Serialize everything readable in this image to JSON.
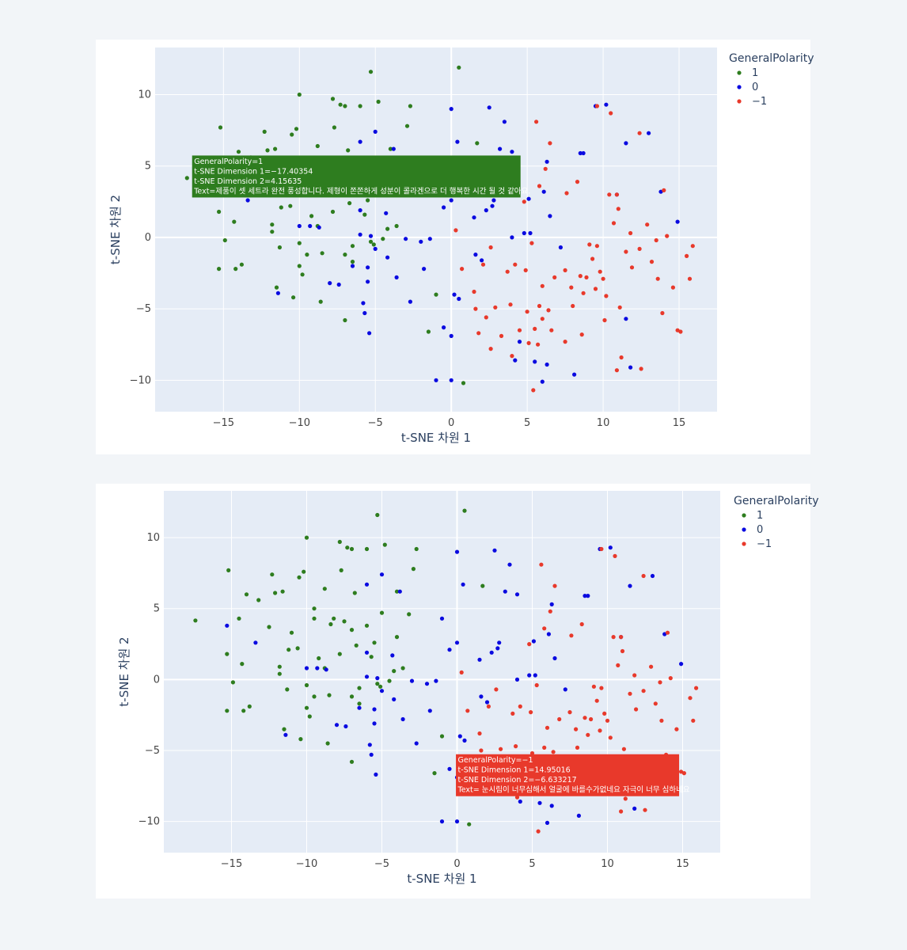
{
  "colors": {
    "positive": "#2e7d1f",
    "neutral": "#0a0ae0",
    "negative": "#e8392b",
    "plot_bg": "#e5ecf6",
    "grid": "#ffffff"
  },
  "chart_data": [
    {
      "type": "scatter",
      "xlabel": "t-SNE 차원 1",
      "ylabel": "t-SNE 차원 2",
      "xlim": [
        -19.5,
        17.5
      ],
      "ylim": [
        -12.2,
        13.3
      ],
      "xticks": [
        -15,
        -10,
        -5,
        0,
        5,
        10,
        15
      ],
      "yticks": [
        10,
        5,
        0,
        -5,
        -10
      ],
      "xtick_labels": [
        "−15",
        "−10",
        "−5",
        "0",
        "5",
        "10",
        "15"
      ],
      "ytick_labels": [
        "10",
        "5",
        "0",
        "−5",
        "−10"
      ],
      "legend": {
        "title": "GeneralPolarity",
        "position": "top-right",
        "entries": [
          {
            "label": "1",
            "color_key": "positive"
          },
          {
            "label": "0",
            "color_key": "neutral"
          },
          {
            "label": "−1",
            "color_key": "negative"
          }
        ]
      },
      "grid": true,
      "tooltip": {
        "lines": [
          "GeneralPolarity=1",
          "t-SNE Dimension 1=−17.40354",
          "t-SNE Dimension 2=4.15635",
          "Text=제품이 셋 세트라 완전   풍성합니다. 제형이 쫀쫀하게 성분이 콜라겐으로  더 행복한 시간 될 것 같아요."
        ],
        "color_key": "positive",
        "x": -17.40354,
        "y": 4.15635
      },
      "series": [
        {
          "name": "1",
          "color_key": "positive",
          "points": [
            [
              -17.4,
              4.16
            ],
            [
              -15.2,
              7.7
            ],
            [
              -15.3,
              1.8
            ],
            [
              -15.3,
              -2.2
            ],
            [
              -14.9,
              -0.2
            ],
            [
              -14.5,
              4.3
            ],
            [
              -14.3,
              1.1
            ],
            [
              -14.2,
              -2.2
            ],
            [
              -14.0,
              6.0
            ],
            [
              -13.8,
              -1.9
            ],
            [
              -13.2,
              5.6
            ],
            [
              -12.5,
              3.7
            ],
            [
              -12.3,
              7.4
            ],
            [
              -12.1,
              6.1
            ],
            [
              -11.8,
              0.4
            ],
            [
              -11.8,
              0.9
            ],
            [
              -11.6,
              6.2
            ],
            [
              -11.5,
              -3.5
            ],
            [
              -11.3,
              -0.7
            ],
            [
              -11.2,
              2.1
            ],
            [
              -11.0,
              3.3
            ],
            [
              -10.6,
              2.2
            ],
            [
              -10.5,
              7.2
            ],
            [
              -10.4,
              -4.2
            ],
            [
              -10.2,
              7.6
            ],
            [
              -10.0,
              -2.0
            ],
            [
              -10.0,
              -0.4
            ],
            [
              -10.0,
              10.0
            ],
            [
              -9.8,
              -2.6
            ],
            [
              -9.5,
              4.3
            ],
            [
              -9.5,
              5.0
            ],
            [
              -9.5,
              -1.2
            ],
            [
              -9.2,
              1.5
            ],
            [
              -8.8,
              0.8
            ],
            [
              -8.8,
              6.4
            ],
            [
              -8.6,
              -4.5
            ],
            [
              -8.5,
              -1.1
            ],
            [
              -8.4,
              3.9
            ],
            [
              -8.2,
              4.3
            ],
            [
              -7.8,
              9.7
            ],
            [
              -7.8,
              1.8
            ],
            [
              -7.7,
              7.7
            ],
            [
              -7.5,
              4.1
            ],
            [
              -7.3,
              9.3
            ],
            [
              -7.0,
              -5.8
            ],
            [
              -7.0,
              3.5
            ],
            [
              -7.0,
              -1.2
            ],
            [
              -7.0,
              9.2
            ],
            [
              -6.8,
              6.1
            ],
            [
              -6.7,
              2.4
            ],
            [
              -6.5,
              -1.7
            ],
            [
              -6.5,
              -0.6
            ],
            [
              -6.0,
              3.8
            ],
            [
              -6.0,
              9.2
            ],
            [
              -5.7,
              1.6
            ],
            [
              -5.5,
              2.6
            ],
            [
              -5.3,
              -0.3
            ],
            [
              -5.3,
              11.6
            ],
            [
              -5.1,
              -0.5
            ],
            [
              -5.0,
              4.7
            ],
            [
              -4.8,
              9.5
            ],
            [
              -4.5,
              -0.1
            ],
            [
              -4.2,
              0.6
            ],
            [
              -4.0,
              6.2
            ],
            [
              -4.0,
              3.0
            ],
            [
              -3.6,
              0.8
            ],
            [
              -3.2,
              4.6
            ],
            [
              -2.7,
              9.2
            ],
            [
              -2.9,
              7.8
            ],
            [
              -1.5,
              -6.6
            ],
            [
              -1.0,
              -4.0
            ],
            [
              0.5,
              11.9
            ],
            [
              0.8,
              -10.2
            ],
            [
              1.7,
              6.6
            ]
          ]
        },
        {
          "name": "0",
          "color_key": "neutral",
          "points": [
            [
              -15.3,
              3.8
            ],
            [
              -13.4,
              2.6
            ],
            [
              -11.4,
              -3.9
            ],
            [
              -10.0,
              0.8
            ],
            [
              -9.3,
              0.8
            ],
            [
              -8.7,
              0.7
            ],
            [
              -8.0,
              -3.2
            ],
            [
              -7.4,
              -3.3
            ],
            [
              -6.5,
              -2.0
            ],
            [
              -6.0,
              1.9
            ],
            [
              -6.0,
              6.7
            ],
            [
              -6.0,
              0.2
            ],
            [
              -5.8,
              -4.6
            ],
            [
              -5.7,
              -5.3
            ],
            [
              -5.5,
              -3.1
            ],
            [
              -5.5,
              -2.1
            ],
            [
              -5.4,
              -6.7
            ],
            [
              -5.3,
              0.1
            ],
            [
              -5.0,
              -0.8
            ],
            [
              -5.0,
              7.4
            ],
            [
              -4.3,
              1.7
            ],
            [
              -4.2,
              -1.4
            ],
            [
              -3.8,
              6.2
            ],
            [
              -3.6,
              -2.8
            ],
            [
              -3.0,
              -0.1
            ],
            [
              -2.7,
              -4.5
            ],
            [
              -2.0,
              -0.3
            ],
            [
              -1.8,
              -2.2
            ],
            [
              -1.4,
              -0.1
            ],
            [
              -1.0,
              4.3
            ],
            [
              -0.5,
              2.1
            ],
            [
              -1.0,
              -10.0
            ],
            [
              -0.5,
              -6.3
            ],
            [
              0.0,
              -6.9
            ],
            [
              0.0,
              -10.0
            ],
            [
              0.0,
              2.6
            ],
            [
              0.0,
              9.0
            ],
            [
              0.2,
              -4.0
            ],
            [
              0.4,
              6.7
            ],
            [
              0.5,
              -4.3
            ],
            [
              1.5,
              1.4
            ],
            [
              1.6,
              -1.2
            ],
            [
              2.0,
              -1.6
            ],
            [
              2.3,
              1.9
            ],
            [
              2.5,
              9.1
            ],
            [
              2.7,
              2.2
            ],
            [
              2.8,
              2.6
            ],
            [
              3.2,
              6.2
            ],
            [
              3.5,
              8.1
            ],
            [
              4.0,
              0.0
            ],
            [
              4.0,
              6.0
            ],
            [
              4.2,
              -8.6
            ],
            [
              4.5,
              -7.3
            ],
            [
              4.8,
              0.3
            ],
            [
              5.2,
              0.3
            ],
            [
              5.1,
              2.7
            ],
            [
              5.5,
              -8.7
            ],
            [
              6.0,
              -10.1
            ],
            [
              6.3,
              -8.9
            ],
            [
              6.1,
              3.2
            ],
            [
              6.3,
              5.3
            ],
            [
              6.5,
              1.5
            ],
            [
              7.2,
              -0.7
            ],
            [
              8.1,
              -9.6
            ],
            [
              8.5,
              5.9
            ],
            [
              8.7,
              5.9
            ],
            [
              9.5,
              9.2
            ],
            [
              10.2,
              9.3
            ],
            [
              10.9,
              3.0
            ],
            [
              11.5,
              6.6
            ],
            [
              11.5,
              -5.7
            ],
            [
              11.8,
              -9.1
            ],
            [
              13.0,
              7.3
            ],
            [
              13.8,
              3.2
            ],
            [
              14.9,
              1.1
            ]
          ]
        },
        {
          "name": "−1",
          "color_key": "negative",
          "points": [
            [
              0.3,
              0.5
            ],
            [
              0.7,
              -2.2
            ],
            [
              1.5,
              -3.8
            ],
            [
              1.6,
              -5.0
            ],
            [
              1.8,
              -6.7
            ],
            [
              2.1,
              -1.9
            ],
            [
              2.3,
              -5.6
            ],
            [
              2.6,
              -0.7
            ],
            [
              2.6,
              -7.8
            ],
            [
              2.9,
              -4.9
            ],
            [
              3.3,
              -6.9
            ],
            [
              3.7,
              -2.4
            ],
            [
              3.9,
              -4.7
            ],
            [
              4.0,
              -8.3
            ],
            [
              4.2,
              -1.9
            ],
            [
              4.5,
              -6.5
            ],
            [
              4.8,
              2.5
            ],
            [
              4.9,
              -2.3
            ],
            [
              5.0,
              -5.2
            ],
            [
              5.1,
              -7.4
            ],
            [
              5.3,
              -0.4
            ],
            [
              5.4,
              -10.7
            ],
            [
              5.5,
              -6.4
            ],
            [
              5.6,
              8.1
            ],
            [
              5.7,
              -7.5
            ],
            [
              5.8,
              -4.8
            ],
            [
              5.8,
              3.6
            ],
            [
              6.0,
              -3.4
            ],
            [
              6.0,
              -5.7
            ],
            [
              6.2,
              4.8
            ],
            [
              6.4,
              -5.1
            ],
            [
              6.5,
              6.6
            ],
            [
              6.6,
              -6.5
            ],
            [
              6.8,
              -2.8
            ],
            [
              7.5,
              -2.3
            ],
            [
              7.5,
              -7.3
            ],
            [
              7.6,
              3.1
            ],
            [
              7.9,
              -3.5
            ],
            [
              8.0,
              -4.8
            ],
            [
              8.3,
              3.9
            ],
            [
              8.5,
              -2.7
            ],
            [
              8.6,
              -6.8
            ],
            [
              8.7,
              -3.9
            ],
            [
              8.9,
              -2.8
            ],
            [
              9.1,
              -0.5
            ],
            [
              9.3,
              -1.5
            ],
            [
              9.5,
              -3.6
            ],
            [
              9.6,
              9.2
            ],
            [
              9.6,
              -0.6
            ],
            [
              9.8,
              -2.4
            ],
            [
              10.0,
              -2.9
            ],
            [
              10.1,
              -5.8
            ],
            [
              10.2,
              -4.1
            ],
            [
              10.4,
              3.0
            ],
            [
              10.5,
              8.7
            ],
            [
              10.7,
              1.0
            ],
            [
              10.9,
              3.0
            ],
            [
              11.0,
              2.0
            ],
            [
              11.1,
              -4.9
            ],
            [
              11.2,
              -8.4
            ],
            [
              11.5,
              -1.0
            ],
            [
              11.8,
              0.3
            ],
            [
              11.9,
              -2.1
            ],
            [
              12.4,
              -0.8
            ],
            [
              12.5,
              -9.2
            ],
            [
              12.9,
              0.9
            ],
            [
              13.2,
              -1.7
            ],
            [
              13.6,
              -2.9
            ],
            [
              13.9,
              -5.3
            ],
            [
              14.0,
              3.3
            ],
            [
              14.2,
              0.1
            ],
            [
              14.6,
              -3.5
            ],
            [
              14.9,
              -6.5
            ],
            [
              15.1,
              -6.6
            ],
            [
              15.5,
              -1.3
            ],
            [
              15.7,
              -2.9
            ],
            [
              15.9,
              -0.6
            ],
            [
              10.9,
              -9.3
            ],
            [
              12.4,
              7.3
            ],
            [
              13.5,
              -0.2
            ]
          ]
        }
      ]
    },
    {
      "type": "scatter",
      "xlabel": "t-SNE 차원 1",
      "ylabel": "t-SNE 차원 2",
      "xlim": [
        -19.5,
        17.5
      ],
      "ylim": [
        -12.2,
        13.3
      ],
      "xticks": [
        -15,
        -10,
        -5,
        0,
        5,
        10,
        15
      ],
      "yticks": [
        10,
        5,
        0,
        -5,
        -10
      ],
      "xtick_labels": [
        "−15",
        "−10",
        "−5",
        "0",
        "5",
        "10",
        "15"
      ],
      "ytick_labels": [
        "10",
        "5",
        "0",
        "−5",
        "−10"
      ],
      "legend": {
        "title": "GeneralPolarity",
        "position": "top-right",
        "entries": [
          {
            "label": "1",
            "color_key": "positive"
          },
          {
            "label": "0",
            "color_key": "neutral"
          },
          {
            "label": "−1",
            "color_key": "negative"
          }
        ]
      },
      "grid": true,
      "tooltip": {
        "lines": [
          "GeneralPolarity=−1",
          "t-SNE Dimension 1=14.95016",
          "t-SNE Dimension 2=−6.633217",
          "Text= 눈시림이 너무심해서 얼굴에 바를수가없네요  자극이 너무 심하네요"
        ],
        "color_key": "negative",
        "x": 14.95016,
        "y": -6.633217
      },
      "series_ref": "same as chart 1"
    }
  ]
}
